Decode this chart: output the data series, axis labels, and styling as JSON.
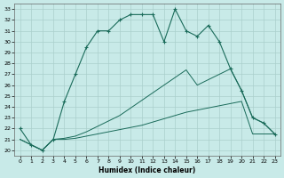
{
  "xlabel": "Humidex (Indice chaleur)",
  "xlim": [
    -0.5,
    23.5
  ],
  "ylim": [
    19.5,
    33.5
  ],
  "xticks": [
    0,
    1,
    2,
    3,
    4,
    5,
    6,
    7,
    8,
    9,
    10,
    11,
    12,
    13,
    14,
    15,
    16,
    17,
    18,
    19,
    20,
    21,
    22,
    23
  ],
  "yticks": [
    20,
    21,
    22,
    23,
    24,
    25,
    26,
    27,
    28,
    29,
    30,
    31,
    32,
    33
  ],
  "bg_color": "#c8eae8",
  "line_color": "#1a6b5a",
  "grid_color": "#aacfcc",
  "line1_x": [
    0,
    1,
    2,
    3,
    4,
    5,
    6,
    7,
    8,
    9,
    10,
    11,
    12,
    13,
    14,
    15,
    16,
    17,
    18,
    19,
    20,
    21,
    22,
    23
  ],
  "line1_y": [
    22.0,
    20.5,
    20.0,
    21.0,
    24.5,
    27.0,
    29.5,
    31.0,
    31.0,
    32.0,
    32.5,
    32.5,
    32.5,
    30.0,
    33.0,
    31.0,
    30.5,
    31.5,
    30.0,
    27.5,
    25.5,
    23.0,
    22.5,
    21.5
  ],
  "line2_x": [
    0,
    1,
    2,
    3,
    4,
    5,
    6,
    7,
    8,
    9,
    10,
    11,
    12,
    13,
    14,
    15,
    16,
    17,
    18,
    19,
    20,
    21,
    22,
    23
  ],
  "line2_y": [
    21.0,
    20.5,
    20.0,
    21.0,
    21.0,
    21.1,
    21.3,
    21.5,
    21.7,
    21.9,
    22.1,
    22.3,
    22.6,
    22.9,
    23.2,
    23.5,
    23.7,
    23.9,
    24.1,
    24.3,
    24.5,
    21.5,
    21.5,
    21.5
  ],
  "line3_x": [
    0,
    1,
    2,
    3,
    4,
    5,
    6,
    7,
    8,
    9,
    10,
    11,
    12,
    13,
    14,
    15,
    16,
    17,
    18,
    19,
    20,
    21,
    22,
    23
  ],
  "line3_y": [
    21.0,
    20.5,
    20.0,
    21.0,
    21.1,
    21.3,
    21.7,
    22.2,
    22.7,
    23.2,
    23.9,
    24.6,
    25.3,
    26.0,
    26.7,
    27.4,
    26.0,
    26.5,
    27.0,
    27.5,
    25.5,
    23.0,
    22.5,
    21.5
  ]
}
